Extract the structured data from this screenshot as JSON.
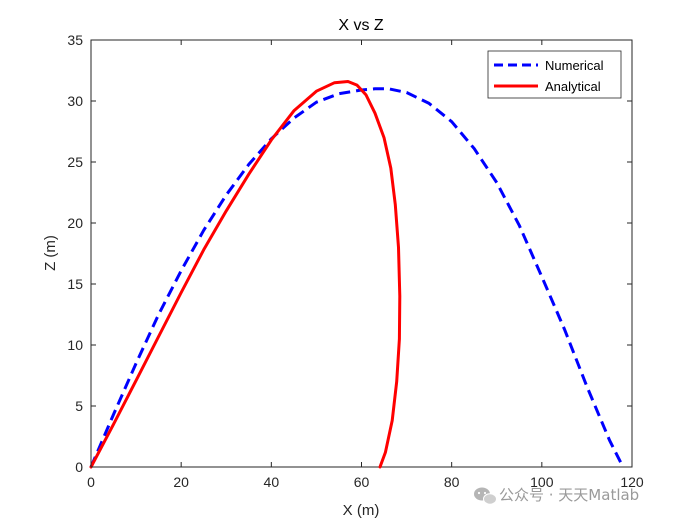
{
  "chart_data": {
    "type": "line",
    "title": "X vs Z",
    "xlabel": "X (m)",
    "ylabel": "Z (m)",
    "xlim": [
      0,
      120
    ],
    "ylim": [
      0,
      35
    ],
    "xticks": [
      0,
      20,
      40,
      60,
      80,
      100,
      120
    ],
    "yticks": [
      0,
      5,
      10,
      15,
      20,
      25,
      30,
      35
    ],
    "grid": false,
    "legend_position": "top-right",
    "series": [
      {
        "name": "Numerical",
        "color": "#0000ff",
        "style": "dashed",
        "x": [
          0,
          5,
          10,
          15,
          20,
          25,
          30,
          35,
          40,
          45,
          50,
          55,
          60,
          63,
          66,
          70,
          75,
          80,
          85,
          90,
          95,
          100,
          105,
          110,
          115,
          118
        ],
        "y": [
          0,
          4.3,
          8.5,
          12.5,
          16.1,
          19.4,
          22.3,
          24.8,
          26.9,
          28.6,
          29.9,
          30.6,
          30.9,
          31.0,
          31.0,
          30.7,
          29.8,
          28.3,
          26.1,
          23.3,
          19.8,
          15.6,
          11.3,
          6.6,
          2.2,
          0
        ]
      },
      {
        "name": "Analytical",
        "color": "#ff0000",
        "style": "solid",
        "x": [
          0,
          5,
          10,
          15,
          20,
          25,
          30,
          35,
          40,
          45,
          50,
          54,
          57,
          59,
          61,
          63,
          65,
          66.5,
          67.5,
          68.2,
          68.5,
          68.4,
          67.8,
          66.8,
          65.3,
          64.1
        ],
        "y": [
          0,
          3.5,
          7.1,
          10.7,
          14.3,
          17.8,
          21.0,
          24.0,
          26.8,
          29.2,
          30.8,
          31.5,
          31.6,
          31.3,
          30.5,
          29.0,
          27.0,
          24.5,
          21.5,
          18.0,
          14.0,
          10.5,
          7.0,
          3.8,
          1.2,
          0
        ]
      }
    ]
  },
  "watermark": {
    "icon": "wechat-icon",
    "text": "公众号 · 天天Matlab"
  }
}
